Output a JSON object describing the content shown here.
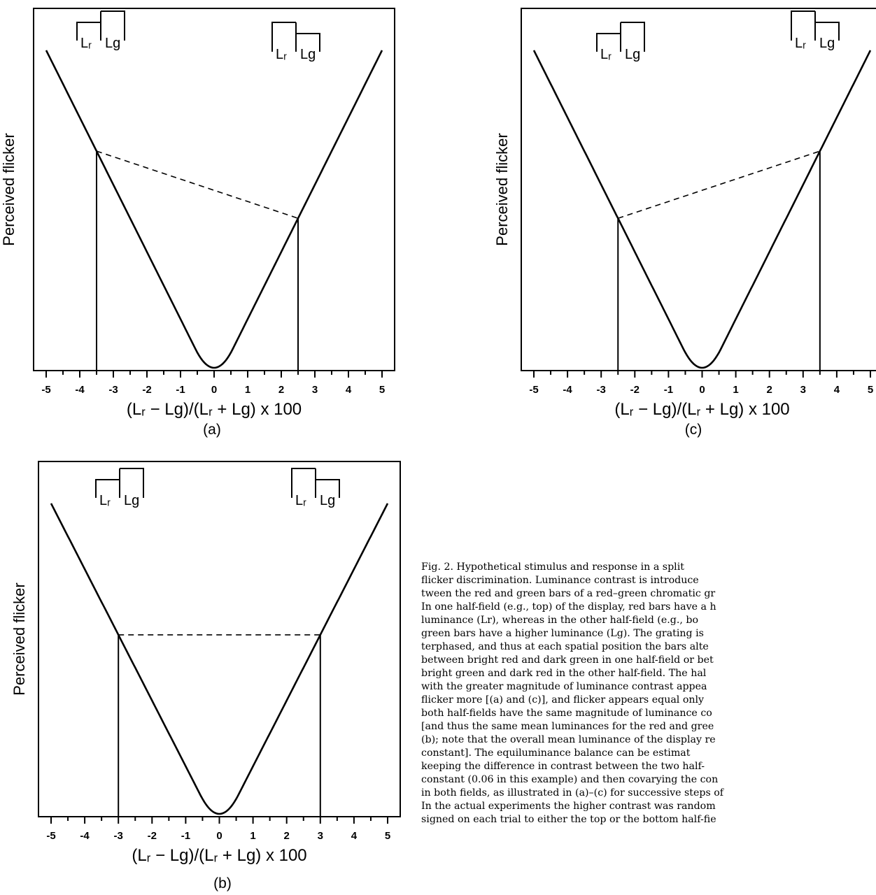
{
  "chart_data": [
    {
      "type": "line",
      "panel_label": "(a)",
      "ylabel": "Perceived  flicker",
      "xlabel": "(Lᵣ − Lg)/(Lᵣ + Lg)  x 100",
      "xlim": [
        -5,
        5
      ],
      "xticks": [
        "-5",
        "-4",
        "-3",
        "-2",
        "-1",
        "0",
        "1",
        "2",
        "3",
        "4",
        "5"
      ],
      "curve": "flicker = |contrast|",
      "marked_x": [
        -3.5,
        2.5
      ],
      "dashed_line_between": [
        -3.5,
        2.5
      ],
      "icons": [
        {
          "label_r": "Lᵣ",
          "label_g": "Lg",
          "higher": "g"
        },
        {
          "label_r": "Lᵣ",
          "label_g": "Lg",
          "higher": "r"
        }
      ]
    },
    {
      "type": "line",
      "panel_label": "(b)",
      "ylabel": "Perceived  flicker",
      "xlabel": "(Lᵣ − Lg)/(Lᵣ + Lg)  x 100",
      "xlim": [
        -5,
        5
      ],
      "xticks": [
        "-5",
        "-4",
        "-3",
        "-2",
        "-1",
        "0",
        "1",
        "2",
        "3",
        "4",
        "5"
      ],
      "curve": "flicker = |contrast|",
      "marked_x": [
        -3,
        3
      ],
      "dashed_line_between": [
        -3,
        3
      ],
      "icons": [
        {
          "label_r": "Lᵣ",
          "label_g": "Lg",
          "higher": "g"
        },
        {
          "label_r": "Lᵣ",
          "label_g": "Lg",
          "higher": "r"
        }
      ]
    },
    {
      "type": "line",
      "panel_label": "(c)",
      "ylabel": "Perceived  flicker",
      "xlabel": "(Lᵣ − Lg)/(Lᵣ + Lg)  x 100",
      "xlim": [
        -5,
        5
      ],
      "xticks": [
        "-5",
        "-4",
        "-3",
        "-2",
        "-1",
        "0",
        "1",
        "2",
        "3",
        "4",
        "5"
      ],
      "curve": "flicker = |contrast|",
      "marked_x": [
        -2.5,
        3.5
      ],
      "dashed_line_between": [
        -2.5,
        3.5
      ],
      "icons": [
        {
          "label_r": "Lᵣ",
          "label_g": "Lg",
          "higher": "g"
        },
        {
          "label_r": "Lᵣ",
          "label_g": "Lg",
          "higher": "r"
        }
      ]
    }
  ],
  "caption": {
    "lines": [
      "Fig. 2.  Hypothetical stimulus and response in a split",
      "flicker discrimination.  Luminance contrast is introduce",
      "tween the red and green bars of a red–green chromatic gr",
      "In one half-field (e.g., top) of the display, red bars have a h",
      "luminance (Lr), whereas in the other half-field (e.g., bo",
      "green bars have a higher luminance (Lg).  The grating is",
      "terphased, and thus at each spatial position the bars alte",
      "between bright red and dark green in one half-field or bet",
      "bright green and dark red in the other half-field.  The hal",
      "with the greater magnitude of luminance contrast appea",
      "flicker more [(a) and (c)], and flicker appears equal only",
      "both half-fields have the same magnitude of luminance co",
      "[and thus the same mean luminances for the red and gree",
      "(b); note that the overall mean luminance of the display re",
      "constant].   The equiluminance balance can be estimat",
      "keeping the difference in contrast between the two half-",
      "constant (0.06 in this example) and then covarying the con",
      "in both fields, as illustrated in (a)–(c) for successive steps of",
      "In the actual experiments the higher contrast was random",
      "signed on each trial to either the top or the bottom half-fie"
    ]
  }
}
